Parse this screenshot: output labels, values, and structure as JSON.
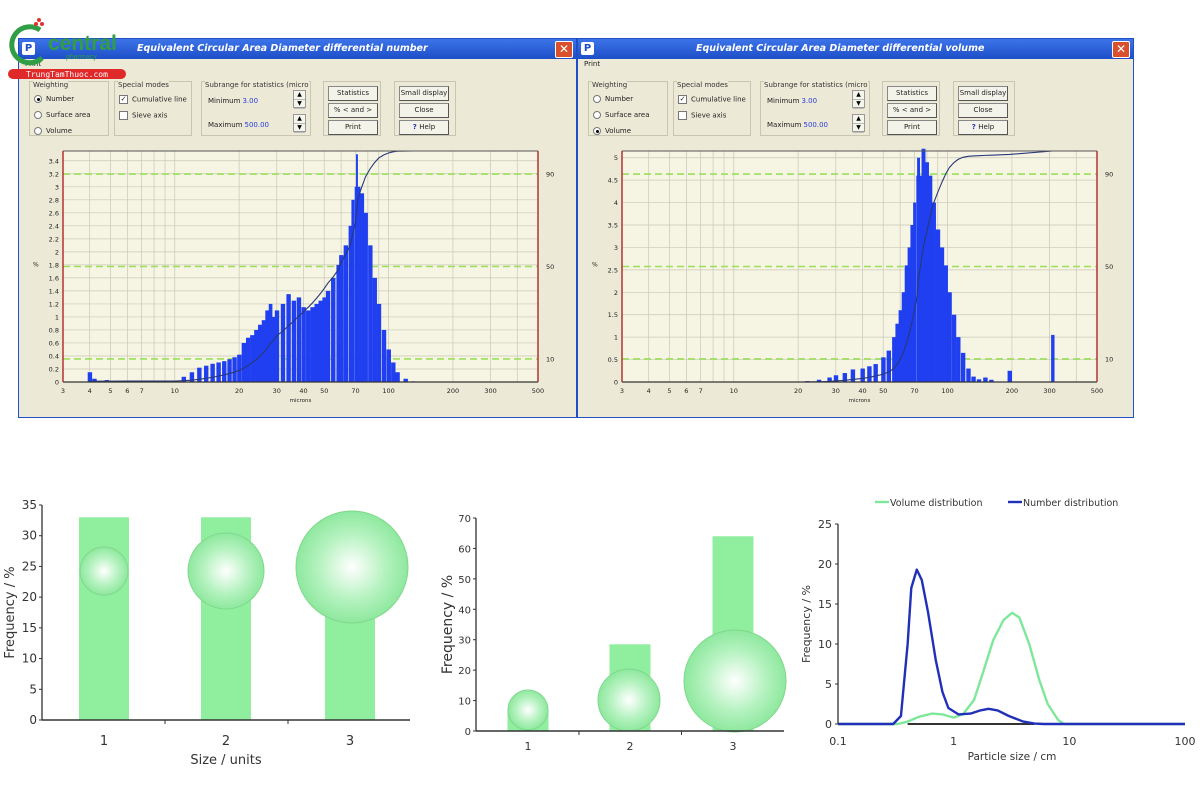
{
  "logo": {
    "brand": "central",
    "sub": "pharmacy",
    "site": "TrungTamThuoc.com"
  },
  "windows": [
    {
      "title": "Equivalent Circular Area Diameter differential number",
      "menu": "Print",
      "weighting": {
        "label": "Weighting",
        "options": [
          "Number",
          "Surface area",
          "Volume"
        ],
        "selected": 0
      },
      "special": {
        "label": "Special modes",
        "cumulative": "Cumulative line",
        "cumulative_checked": true,
        "sieve": "Sieve axis",
        "sieve_checked": false
      },
      "subrange": {
        "label": "Subrange for statistics (micro",
        "min_label": "Minimum",
        "min": "3.00",
        "max_label": "Maximum",
        "max": "500.00"
      },
      "buttons": {
        "statistics": "Statistics",
        "percent": "% < and >",
        "print": "Print",
        "small_display": "Small display",
        "close": "Close",
        "help": "Help"
      },
      "chart_index": 0
    },
    {
      "title": "Equivalent Circular Area Diameter differential volume",
      "menu": "Print",
      "weighting": {
        "label": "Weighting",
        "options": [
          "Number",
          "Surface area",
          "Volume"
        ],
        "selected": 2
      },
      "special": {
        "label": "Special modes",
        "cumulative": "Cumulative line",
        "cumulative_checked": true,
        "sieve": "Sieve axis",
        "sieve_checked": false
      },
      "subrange": {
        "label": "Subrange for statistics (micro",
        "min_label": "Minimum",
        "min": "3.00",
        "max_label": "Maximum",
        "max": "500.00"
      },
      "buttons": {
        "statistics": "Statistics",
        "percent": "% < and >",
        "print": "Print",
        "small_display": "Small display",
        "close": "Close",
        "help": "Help"
      },
      "chart_index": 1
    }
  ],
  "chart_data": [
    {
      "type": "bar",
      "xscale": "log",
      "xlabel": "microns",
      "ylabel": "%",
      "xlim": [
        3,
        500
      ],
      "ylim": [
        0,
        3.55
      ],
      "xticks": [
        3,
        4,
        5,
        6,
        7,
        10,
        20,
        30,
        40,
        50,
        70,
        100,
        200,
        300,
        500
      ],
      "yticks": [
        0,
        0.2,
        0.4,
        0.6,
        0.8,
        1,
        1.2,
        1.4,
        1.6,
        1.8,
        2,
        2.2,
        2.4,
        2.6,
        2.8,
        3,
        3.2,
        3.4
      ],
      "right_ticks": [
        10,
        50,
        90
      ],
      "cumulative_line": true,
      "bar_color": "#1f3ff0",
      "bins": [
        [
          4,
          0.15
        ],
        [
          4.2,
          0.05
        ],
        [
          4.8,
          0.03
        ],
        [
          10,
          0.02
        ],
        [
          11,
          0.08
        ],
        [
          12,
          0.15
        ],
        [
          13,
          0.22
        ],
        [
          14,
          0.25
        ],
        [
          15,
          0.28
        ],
        [
          16,
          0.3
        ],
        [
          17,
          0.32
        ],
        [
          18,
          0.35
        ],
        [
          19,
          0.38
        ],
        [
          20,
          0.42
        ],
        [
          21,
          0.6
        ],
        [
          22,
          0.68
        ],
        [
          23,
          0.72
        ],
        [
          24,
          0.8
        ],
        [
          25,
          0.88
        ],
        [
          26,
          0.95
        ],
        [
          27,
          1.1
        ],
        [
          28,
          1.2
        ],
        [
          29,
          1.0
        ],
        [
          30,
          1.1
        ],
        [
          32,
          1.2
        ],
        [
          34,
          1.35
        ],
        [
          36,
          1.25
        ],
        [
          38,
          1.3
        ],
        [
          40,
          1.15
        ],
        [
          42,
          1.1
        ],
        [
          44,
          1.15
        ],
        [
          46,
          1.2
        ],
        [
          48,
          1.25
        ],
        [
          50,
          1.3
        ],
        [
          52,
          1.4
        ],
        [
          55,
          1.6
        ],
        [
          58,
          1.8
        ],
        [
          60,
          1.95
        ],
        [
          63,
          2.1
        ],
        [
          66,
          2.4
        ],
        [
          68,
          2.8
        ],
        [
          70,
          3.0
        ],
        [
          71,
          3.5
        ],
        [
          72,
          3.0
        ],
        [
          75,
          2.9
        ],
        [
          78,
          2.6
        ],
        [
          82,
          2.1
        ],
        [
          86,
          1.6
        ],
        [
          90,
          1.2
        ],
        [
          95,
          0.8
        ],
        [
          100,
          0.5
        ],
        [
          105,
          0.3
        ],
        [
          110,
          0.15
        ],
        [
          120,
          0.05
        ],
        [
          130,
          0.01
        ]
      ]
    },
    {
      "type": "bar",
      "xscale": "log",
      "xlabel": "microns",
      "ylabel": "%",
      "xlim": [
        3,
        500
      ],
      "ylim": [
        0,
        5.15
      ],
      "xticks": [
        3,
        4,
        5,
        6,
        7,
        10,
        20,
        30,
        40,
        50,
        70,
        100,
        200,
        300,
        500
      ],
      "yticks": [
        0,
        0.5,
        1,
        1.5,
        2,
        2.5,
        3,
        3.5,
        4,
        4.5,
        5
      ],
      "right_ticks": [
        10,
        50,
        90
      ],
      "cumulative_line": true,
      "bar_color": "#1f3ff0",
      "bins": [
        [
          22,
          0.02
        ],
        [
          25,
          0.05
        ],
        [
          28,
          0.1
        ],
        [
          30,
          0.15
        ],
        [
          33,
          0.2
        ],
        [
          36,
          0.28
        ],
        [
          40,
          0.3
        ],
        [
          43,
          0.35
        ],
        [
          46,
          0.4
        ],
        [
          50,
          0.55
        ],
        [
          53,
          0.7
        ],
        [
          56,
          1.0
        ],
        [
          58,
          1.3
        ],
        [
          60,
          1.6
        ],
        [
          62,
          2.0
        ],
        [
          64,
          2.6
        ],
        [
          66,
          3.0
        ],
        [
          68,
          3.5
        ],
        [
          70,
          4.0
        ],
        [
          72,
          4.6
        ],
        [
          73,
          5.0
        ],
        [
          75,
          4.6
        ],
        [
          77,
          5.2
        ],
        [
          80,
          4.9
        ],
        [
          83,
          4.6
        ],
        [
          86,
          4.0
        ],
        [
          90,
          3.4
        ],
        [
          94,
          3.0
        ],
        [
          98,
          2.6
        ],
        [
          102,
          2.0
        ],
        [
          107,
          1.5
        ],
        [
          112,
          1.0
        ],
        [
          118,
          0.65
        ],
        [
          125,
          0.3
        ],
        [
          132,
          0.12
        ],
        [
          140,
          0.06
        ],
        [
          150,
          0.1
        ],
        [
          160,
          0.05
        ],
        [
          195,
          0.25
        ],
        [
          310,
          1.05
        ]
      ]
    },
    {
      "type": "bar",
      "categories": [
        "1",
        "2",
        "3"
      ],
      "values": [
        33,
        33,
        33
      ],
      "xlabel": "Size / units",
      "ylabel": "Frequency / %",
      "ylim": [
        0,
        35
      ],
      "yticks": [
        0,
        5,
        10,
        15,
        20,
        25,
        30,
        35
      ],
      "bar_color": "#90ee9f"
    },
    {
      "type": "bar",
      "categories": [
        "1",
        "2",
        "3"
      ],
      "values": [
        7,
        28.5,
        64
      ],
      "xlabel": "",
      "ylabel": "Frequency / %",
      "ylim": [
        0,
        70
      ],
      "yticks": [
        0,
        10,
        20,
        30,
        40,
        50,
        60,
        70
      ],
      "bar_color": "#90ee9f"
    },
    {
      "type": "line",
      "xscale": "log",
      "xlabel": "Particle size / cm",
      "ylabel": "Frequency / %",
      "xlim": [
        0.1,
        100
      ],
      "ylim": [
        0,
        25
      ],
      "xticks": [
        0.1,
        1,
        10,
        100
      ],
      "yticks": [
        0,
        5,
        10,
        15,
        20,
        25
      ],
      "legend": "top",
      "series": [
        {
          "name": "Volume distribution",
          "color": "#7ee89a",
          "points": [
            [
              0.1,
              0
            ],
            [
              0.33,
              0
            ],
            [
              0.4,
              0.3
            ],
            [
              0.5,
              0.9
            ],
            [
              0.65,
              1.3
            ],
            [
              0.8,
              1.2
            ],
            [
              1.0,
              0.8
            ],
            [
              1.2,
              1.2
            ],
            [
              1.5,
              3
            ],
            [
              1.8,
              6.5
            ],
            [
              2.2,
              10.5
            ],
            [
              2.7,
              13
            ],
            [
              3.2,
              13.9
            ],
            [
              3.7,
              13.3
            ],
            [
              4.5,
              10
            ],
            [
              5.5,
              5.5
            ],
            [
              6.5,
              2.5
            ],
            [
              8,
              0.5
            ],
            [
              9,
              0
            ],
            [
              100,
              0
            ]
          ]
        },
        {
          "name": "Number distribution",
          "color": "#2030b8",
          "points": [
            [
              0.1,
              0
            ],
            [
              0.3,
              0
            ],
            [
              0.35,
              1
            ],
            [
              0.4,
              10
            ],
            [
              0.43,
              17
            ],
            [
              0.48,
              19.3
            ],
            [
              0.53,
              18
            ],
            [
              0.6,
              14
            ],
            [
              0.7,
              8
            ],
            [
              0.8,
              4
            ],
            [
              0.9,
              2
            ],
            [
              1.1,
              1.2
            ],
            [
              1.4,
              1.3
            ],
            [
              1.7,
              1.7
            ],
            [
              2,
              1.9
            ],
            [
              2.4,
              1.7
            ],
            [
              3,
              1
            ],
            [
              4,
              0.3
            ],
            [
              5,
              0.05
            ],
            [
              6,
              0
            ],
            [
              100,
              0
            ]
          ]
        }
      ]
    }
  ]
}
